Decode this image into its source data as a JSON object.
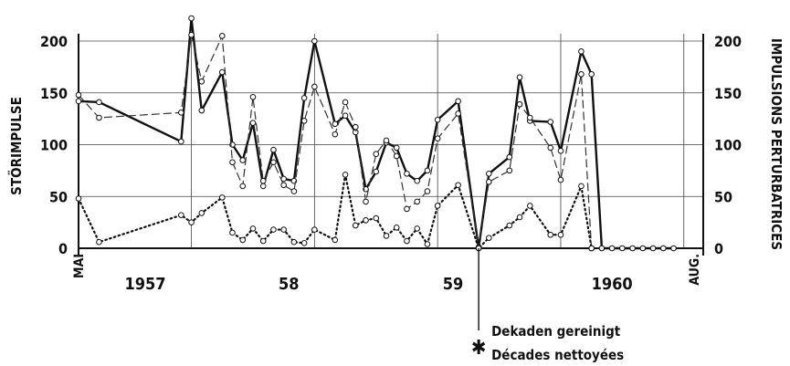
{
  "chart_data": {
    "type": "line",
    "ylabel_left": "STÖRIMPULSE",
    "ylabel_right": "IMPULSIONS PERTURBATRICES",
    "ylim": [
      0,
      200
    ],
    "y_ticks": [
      0,
      50,
      100,
      150,
      200
    ],
    "xlim": [
      0,
      60
    ],
    "x_labels": [
      {
        "text": "MAI",
        "x": 0,
        "rotated": true
      },
      {
        "text": "1957",
        "x": 6.5
      },
      {
        "text": "58",
        "x": 20.5
      },
      {
        "text": "59",
        "x": 36.5
      },
      {
        "text": "1960",
        "x": 52
      },
      {
        "text": "AUG.",
        "x": 60,
        "rotated": true
      }
    ],
    "x_vlines": [
      0,
      11,
      23,
      35,
      47,
      59
    ],
    "series": [
      {
        "style": "solid",
        "x": [
          0,
          2,
          10,
          11,
          12,
          14,
          15,
          16,
          17,
          18,
          19,
          20,
          21,
          22,
          23,
          25,
          26,
          27,
          28,
          29,
          30,
          31,
          32,
          33,
          34,
          35,
          37,
          39,
          40,
          42,
          43,
          44,
          46,
          47,
          49,
          50,
          51,
          52,
          53,
          54,
          55,
          56,
          57,
          58
        ],
        "values": [
          142,
          141,
          103,
          222,
          133,
          170,
          100,
          85,
          121,
          60,
          95,
          67,
          65,
          145,
          200,
          120,
          128,
          112,
          57,
          74,
          102,
          97,
          72,
          65,
          75,
          124,
          142,
          0,
          72,
          88,
          165,
          123,
          122,
          94,
          190,
          168,
          0,
          0,
          0,
          0,
          0,
          0,
          0,
          0
        ]
      },
      {
        "style": "dashed",
        "x": [
          0,
          2,
          10,
          11,
          12,
          14,
          15,
          16,
          17,
          18,
          19,
          20,
          21,
          22,
          23,
          25,
          26,
          27,
          28,
          29,
          30,
          31,
          32,
          33,
          34,
          35,
          37,
          39,
          40,
          42,
          43,
          44,
          46,
          47,
          49,
          50
        ],
        "values": [
          148,
          126,
          131,
          206,
          161,
          205,
          83,
          60,
          146,
          65,
          83,
          61,
          55,
          123,
          156,
          110,
          141,
          117,
          45,
          91,
          104,
          89,
          38,
          45,
          55,
          106,
          130,
          1,
          64,
          75,
          139,
          126,
          97,
          66,
          168,
          0
        ]
      },
      {
        "style": "dotted",
        "x": [
          0,
          2,
          10,
          11,
          12,
          14,
          15,
          16,
          17,
          18,
          19,
          20,
          21,
          22,
          23,
          25,
          26,
          27,
          28,
          29,
          30,
          31,
          32,
          33,
          34,
          35,
          37,
          39,
          40,
          42,
          43,
          44,
          46,
          47,
          49,
          50
        ],
        "values": [
          48,
          6,
          32,
          25,
          34,
          49,
          15,
          8,
          19,
          7,
          18,
          18,
          6,
          5,
          18,
          8,
          71,
          22,
          27,
          29,
          12,
          20,
          7,
          19,
          4,
          41,
          61,
          0,
          10,
          22,
          30,
          41,
          13,
          13,
          60,
          0
        ]
      }
    ],
    "annotation": {
      "x": 39,
      "marker": "✱",
      "lines": [
        "Dekaden gereinigt",
        "Décades nettoyées"
      ]
    }
  }
}
